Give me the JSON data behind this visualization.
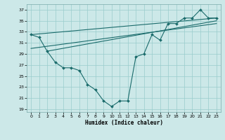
{
  "xlabel": "Humidex (Indice chaleur)",
  "bg_color": "#cce8e8",
  "grid_color": "#99cccc",
  "line_color": "#1a6b6b",
  "xlim": [
    -0.5,
    23.5
  ],
  "ylim": [
    18.5,
    38.0
  ],
  "yticks": [
    19,
    21,
    23,
    25,
    27,
    29,
    31,
    33,
    35,
    37
  ],
  "xticks": [
    0,
    1,
    2,
    3,
    4,
    5,
    6,
    7,
    8,
    9,
    10,
    11,
    12,
    13,
    14,
    15,
    16,
    17,
    18,
    19,
    20,
    21,
    22,
    23
  ],
  "main_x": [
    0,
    1,
    2,
    3,
    4,
    5,
    6,
    7,
    8,
    9,
    10,
    11,
    12,
    13,
    14,
    15,
    16,
    17,
    18,
    19,
    20,
    21,
    22,
    23
  ],
  "main_y": [
    32.5,
    32.0,
    29.5,
    27.5,
    26.5,
    26.5,
    26.0,
    23.5,
    22.5,
    20.5,
    19.5,
    20.5,
    20.5,
    28.5,
    29.0,
    32.5,
    31.5,
    34.5,
    34.5,
    35.5,
    35.5,
    37.0,
    35.5,
    35.5
  ],
  "trend1_x": [
    0,
    23
  ],
  "trend1_y": [
    32.5,
    35.5
  ],
  "trend2_x": [
    0,
    23
  ],
  "trend2_y": [
    30.0,
    34.5
  ],
  "trend3_x": [
    2,
    23
  ],
  "trend3_y": [
    29.5,
    35.0
  ]
}
